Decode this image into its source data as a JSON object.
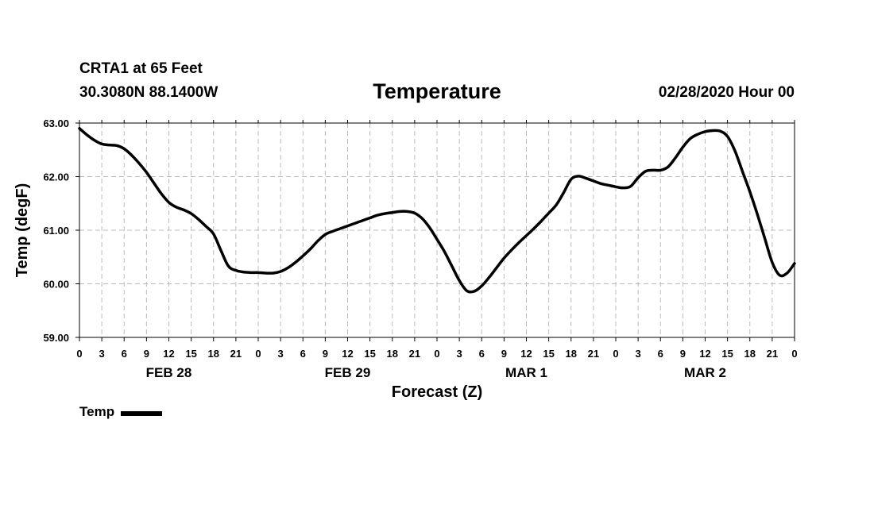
{
  "header": {
    "station": "CRTA1 at 65 Feet",
    "coords": "30.3080N 88.1400W",
    "title": "Temperature",
    "run_time": "02/28/2020 Hour 00"
  },
  "legend": {
    "label": "Temp",
    "color": "#000000"
  },
  "chart_data": {
    "type": "line",
    "title": "Temperature",
    "ylabel": "Temp (degF)",
    "xlabel": "Forecast (Z)",
    "ylim": [
      59.0,
      63.0
    ],
    "xlim": [
      0,
      96
    ],
    "y_ticks": [
      "59.00",
      "60.00",
      "61.00",
      "62.00",
      "63.00"
    ],
    "y_tick_values": [
      59.0,
      60.0,
      61.0,
      62.0,
      63.0
    ],
    "x_tick_labels": [
      "0",
      "3",
      "6",
      "9",
      "12",
      "15",
      "18",
      "21",
      "0",
      "3",
      "6",
      "9",
      "12",
      "15",
      "18",
      "21",
      "0",
      "3",
      "6",
      "9",
      "12",
      "15",
      "18",
      "21",
      "0",
      "3",
      "6",
      "9",
      "12",
      "15",
      "18",
      "21",
      "0"
    ],
    "day_labels": [
      {
        "label": "FEB 28",
        "hour": 12
      },
      {
        "label": "FEB 29",
        "hour": 36
      },
      {
        "label": "MAR 1",
        "hour": 60
      },
      {
        "label": "MAR 2",
        "hour": 84
      }
    ],
    "grid": true,
    "series": [
      {
        "name": "Temp",
        "color": "#000000",
        "x": [
          0,
          1,
          2,
          3,
          4,
          5,
          6,
          7,
          8,
          9,
          10,
          11,
          12,
          13,
          14,
          15,
          16,
          17,
          18,
          19,
          20,
          21,
          22,
          23,
          24,
          25,
          26,
          27,
          28,
          29,
          30,
          31,
          32,
          33,
          34,
          35,
          36,
          37,
          38,
          39,
          40,
          41,
          42,
          43,
          44,
          45,
          46,
          47,
          48,
          49,
          50,
          51,
          52,
          53,
          54,
          55,
          56,
          57,
          58,
          59,
          60,
          61,
          62,
          63,
          64,
          65,
          66,
          67,
          68,
          69,
          70,
          71,
          72,
          73,
          74,
          75,
          76,
          77,
          78,
          79,
          80,
          81,
          82,
          83,
          84,
          85,
          86,
          87,
          88,
          89,
          90,
          91,
          92,
          93,
          94,
          95,
          96
        ],
        "values": [
          62.9,
          62.78,
          62.68,
          62.61,
          62.59,
          62.58,
          62.52,
          62.4,
          62.25,
          62.08,
          61.88,
          61.68,
          61.52,
          61.43,
          61.38,
          61.31,
          61.2,
          61.07,
          60.93,
          60.62,
          60.33,
          60.25,
          60.22,
          60.21,
          60.21,
          60.2,
          60.2,
          60.23,
          60.3,
          60.4,
          60.52,
          60.65,
          60.8,
          60.92,
          60.98,
          61.03,
          61.08,
          61.13,
          61.18,
          61.23,
          61.28,
          61.31,
          61.33,
          61.35,
          61.35,
          61.32,
          61.22,
          61.05,
          60.83,
          60.6,
          60.33,
          60.06,
          59.87,
          59.86,
          59.96,
          60.12,
          60.3,
          60.48,
          60.63,
          60.77,
          60.9,
          61.03,
          61.17,
          61.32,
          61.47,
          61.7,
          61.95,
          62.01,
          61.97,
          61.92,
          61.87,
          61.84,
          61.81,
          61.79,
          61.82,
          61.98,
          62.1,
          62.12,
          62.12,
          62.18,
          62.35,
          62.55,
          62.71,
          62.79,
          62.84,
          62.86,
          62.85,
          62.75,
          62.48,
          62.1,
          61.72,
          61.3,
          60.85,
          60.4,
          60.16,
          60.2,
          60.38
        ]
      }
    ]
  }
}
